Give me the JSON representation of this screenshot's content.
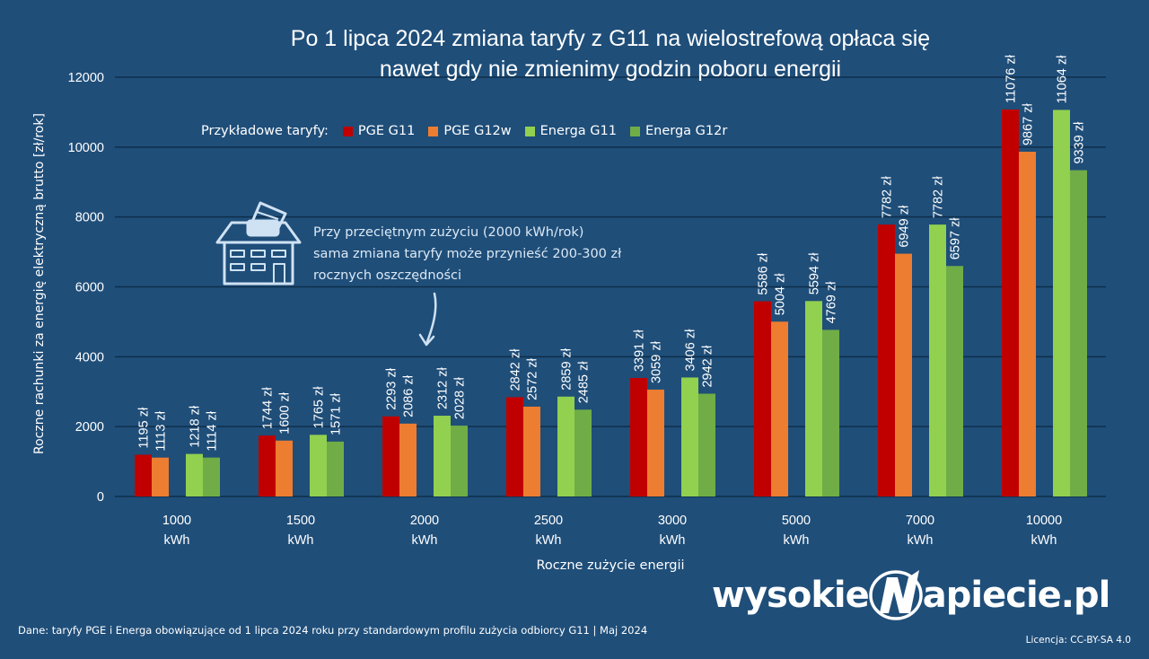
{
  "title_lines": [
    "Po 1 lipca 2024 zmiana taryfy z G11 na wielostrefową opłaca się",
    "nawet gdy nie zmienimy godzin poboru energii"
  ],
  "legend": {
    "title": "Przykładowe taryfy:",
    "placement": "top-left"
  },
  "annotation": {
    "lines": [
      "Przy przeciętnym zużyciu (2000 kWh/rok)",
      "sama zmiana taryfy może przynieść 200-300 zł",
      "rocznych oszczędności"
    ],
    "icons": [
      "house-wallet-icon",
      "curved-arrow-down-icon"
    ]
  },
  "footer": {
    "source": "Dane: taryfy PGE i Energa obowiązujące od 1 lipca 2024 roku przy standardowym profilu zużycia odbiorcy G11  |  Maj 2024",
    "license": "Licencja: CC-BY-SA 4.0"
  },
  "brand": {
    "left": "wysokie",
    "right": "apiecie.pl"
  },
  "colors": {
    "background": "#1f4e79",
    "gridline": "#0f2e4b",
    "text": "#ffffff"
  },
  "chart_data": {
    "type": "bar",
    "title": "Po 1 lipca 2024 zmiana taryfy z G11 na wielostrefową opłaca się nawet gdy nie zmienimy godzin poboru energii",
    "xlabel": "Roczne zużycie energii",
    "ylabel": "Roczne rachunki za energię elektryczną brutto [zł/rok]",
    "categories": [
      "1000 kWh",
      "1500 kWh",
      "2000 kWh",
      "2500 kWh",
      "3000 kWh",
      "5000 kWh",
      "7000 kWh",
      "10000 kWh"
    ],
    "ylim": [
      0,
      12000
    ],
    "yticks": [
      0,
      2000,
      4000,
      6000,
      8000,
      10000,
      12000
    ],
    "grid": true,
    "value_suffix": " zł",
    "series": [
      {
        "name": "PGE G11",
        "color": "#c00000",
        "values": [
          1195,
          1744,
          2293,
          2842,
          3391,
          5586,
          7782,
          11076
        ]
      },
      {
        "name": "PGE G12w",
        "color": "#ed7d31",
        "values": [
          1113,
          1600,
          2086,
          2572,
          3059,
          5004,
          6949,
          9867
        ]
      },
      {
        "name": "Energa G11",
        "color": "#92d050",
        "values": [
          1218,
          1765,
          2312,
          2859,
          3406,
          5594,
          7782,
          11064
        ]
      },
      {
        "name": "Energa G12r",
        "color": "#70ad47",
        "values": [
          1114,
          1571,
          2028,
          2485,
          2942,
          4769,
          6597,
          9339
        ]
      }
    ]
  }
}
